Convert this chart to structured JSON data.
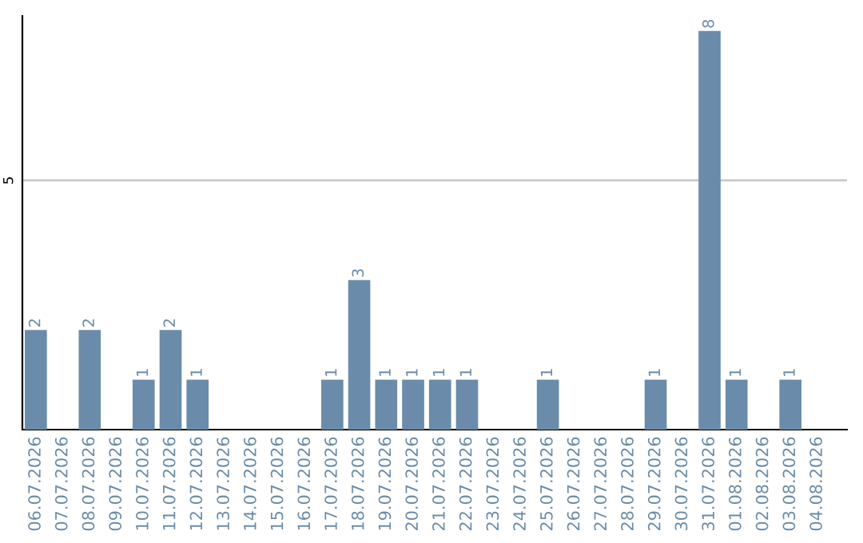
{
  "chart_data": {
    "type": "bar",
    "categories": [
      "06.07.2026",
      "07.07.2026",
      "08.07.2026",
      "09.07.2026",
      "10.07.2026",
      "11.07.2026",
      "12.07.2026",
      "13.07.2026",
      "14.07.2026",
      "15.07.2026",
      "16.07.2026",
      "17.07.2026",
      "18.07.2026",
      "19.07.2026",
      "20.07.2026",
      "21.07.2026",
      "22.07.2026",
      "23.07.2026",
      "24.07.2026",
      "25.07.2026",
      "26.07.2026",
      "27.07.2026",
      "28.07.2026",
      "29.07.2026",
      "30.07.2026",
      "31.07.2026",
      "01.08.2026",
      "02.08.2026",
      "03.08.2026",
      "04.08.2026"
    ],
    "values": [
      2,
      0,
      2,
      0,
      1,
      2,
      1,
      0,
      0,
      0,
      0,
      1,
      3,
      1,
      1,
      1,
      1,
      0,
      0,
      1,
      0,
      0,
      0,
      1,
      0,
      8,
      1,
      0,
      1,
      0
    ],
    "value_labels": [
      "2",
      null,
      "2",
      null,
      "1",
      "2",
      "1",
      null,
      null,
      null,
      null,
      "1",
      "3",
      "1",
      "1",
      "1",
      "1",
      null,
      null,
      "1",
      null,
      null,
      null,
      "1",
      null,
      "8",
      "1",
      null,
      "1",
      null
    ],
    "color": "#6a8caa",
    "ylim": [
      0,
      8.3
    ],
    "yticks": [
      5
    ],
    "grid": "y"
  }
}
